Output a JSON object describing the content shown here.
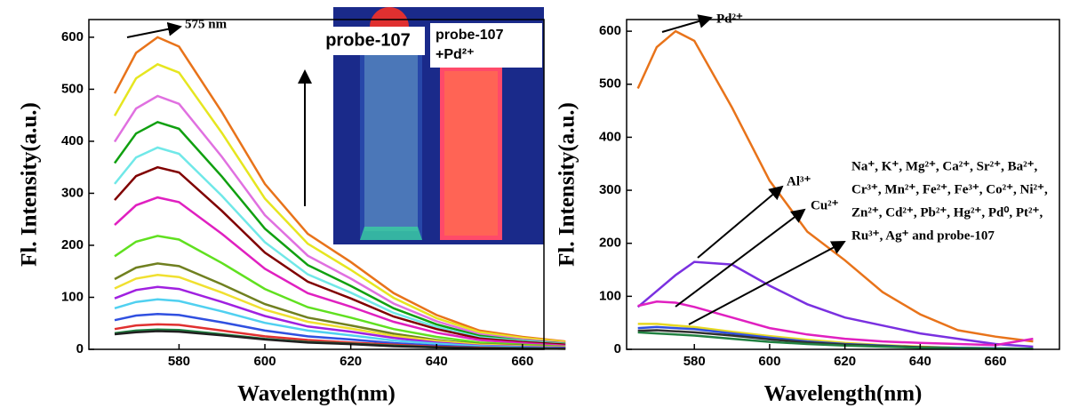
{
  "chart_data": [
    {
      "type": "line",
      "x_label": "Wavelength(nm)",
      "y_label": "Fl. Intensity(a.u.)",
      "annotation": "575 nm",
      "inset_labels": [
        "probe-107",
        "probe-107",
        "+Pd²⁺"
      ],
      "x": [
        565,
        570,
        575,
        580,
        590,
        600,
        610,
        620,
        630,
        640,
        650,
        660,
        670
      ],
      "xlim": [
        559,
        665
      ],
      "xticks": [
        580,
        600,
        620,
        640,
        660
      ],
      "ylim": [
        0,
        634
      ],
      "yticks": [
        0,
        100,
        200,
        300,
        400,
        500,
        600
      ],
      "series": [
        {
          "color": "#e8731a",
          "values": [
            492,
            570,
            600,
            582,
            456,
            318,
            222,
            168,
            108,
            66,
            36,
            24,
            15
          ]
        },
        {
          "color": "#e6e620",
          "values": [
            449,
            521,
            548,
            532,
            416,
            290,
            203,
            153,
            99,
            60,
            33,
            22,
            14
          ]
        },
        {
          "color": "#e070e0",
          "values": [
            399,
            463,
            487,
            472,
            370,
            258,
            180,
            136,
            88,
            54,
            29,
            19,
            12
          ]
        },
        {
          "color": "#10a010",
          "values": [
            358,
            415,
            437,
            424,
            332,
            232,
            162,
            122,
            79,
            48,
            26,
            17,
            11
          ]
        },
        {
          "color": "#70e8e8",
          "values": [
            318,
            369,
            388,
            376,
            295,
            206,
            144,
            109,
            70,
            43,
            23,
            16,
            10
          ]
        },
        {
          "color": "#800000",
          "values": [
            287,
            333,
            350,
            340,
            266,
            186,
            130,
            98,
            63,
            39,
            21,
            14,
            9
          ]
        },
        {
          "color": "#e020c0",
          "values": [
            239,
            277,
            292,
            283,
            222,
            155,
            108,
            82,
            53,
            32,
            18,
            12,
            7
          ]
        },
        {
          "color": "#60e020",
          "values": [
            179,
            207,
            218,
            211,
            166,
            116,
            81,
            61,
            39,
            24,
            13,
            9,
            5
          ]
        },
        {
          "color": "#708020",
          "values": [
            135,
            157,
            165,
            160,
            125,
            87,
            61,
            46,
            30,
            18,
            10,
            7,
            4
          ]
        },
        {
          "color": "#f0e030",
          "values": [
            117,
            136,
            143,
            139,
            109,
            76,
            53,
            40,
            26,
            16,
            9,
            6,
            4
          ]
        },
        {
          "color": "#a020e0",
          "values": [
            98,
            114,
            120,
            116,
            91,
            64,
            44,
            34,
            22,
            13,
            7,
            5,
            3
          ]
        },
        {
          "color": "#50d0f0",
          "values": [
            79,
            91,
            96,
            93,
            73,
            51,
            36,
            27,
            17,
            11,
            6,
            4,
            2
          ]
        },
        {
          "color": "#3050e0",
          "values": [
            56,
            65,
            68,
            66,
            52,
            36,
            25,
            19,
            12,
            7,
            4,
            3,
            2
          ]
        },
        {
          "color": "#e03030",
          "values": [
            39,
            46,
            48,
            47,
            36,
            25,
            18,
            13,
            9,
            5,
            3,
            2,
            1
          ]
        },
        {
          "color": "#208040",
          "values": [
            31,
            36,
            38,
            37,
            29,
            20,
            14,
            11,
            7,
            4,
            2,
            2,
            1
          ]
        },
        {
          "color": "#202020",
          "values": [
            29,
            33,
            35,
            34,
            27,
            19,
            13,
            10,
            6,
            4,
            2,
            1,
            1
          ]
        }
      ]
    },
    {
      "type": "line",
      "x_label": "Wavelength(nm)",
      "y_label": "Fl. Intensity(a.u.)",
      "annotations": [
        "Pd²⁺",
        "Al³⁺",
        "Cu²⁺"
      ],
      "note_lines": [
        "Na⁺, K⁺, Mg²⁺, Ca²⁺, Sr²⁺, Ba²⁺,",
        "Cr³⁺, Mn²⁺, Fe²⁺, Fe³⁺, Co²⁺, Ni²⁺,",
        "Zn²⁺, Cd²⁺, Pb²⁺, Hg²⁺, Pd⁰, Pt²⁺,",
        "Ru³⁺, Ag⁺ and probe-107"
      ],
      "x": [
        565,
        570,
        575,
        580,
        590,
        600,
        610,
        620,
        630,
        640,
        650,
        660,
        670
      ],
      "xlim": [
        562,
        677
      ],
      "xticks": [
        580,
        600,
        620,
        640,
        660
      ],
      "ylim": [
        0,
        622
      ],
      "yticks": [
        0,
        100,
        200,
        300,
        400,
        500,
        600
      ],
      "series": [
        {
          "color": "#e8731a",
          "values": [
            492,
            570,
            600,
            582,
            456,
            318,
            222,
            168,
            108,
            66,
            36,
            24,
            15
          ]
        },
        {
          "color": "#7a30e0",
          "values": [
            80,
            110,
            140,
            165,
            160,
            120,
            85,
            60,
            45,
            30,
            20,
            10,
            5
          ]
        },
        {
          "color": "#e020c0",
          "values": [
            82,
            90,
            88,
            80,
            60,
            40,
            28,
            20,
            15,
            12,
            10,
            8,
            20
          ]
        },
        {
          "color": "#e6d820",
          "values": [
            48,
            48,
            45,
            42,
            33,
            25,
            18,
            12,
            8,
            5,
            3,
            2,
            1
          ]
        },
        {
          "color": "#3050e0",
          "values": [
            40,
            42,
            40,
            38,
            30,
            22,
            15,
            10,
            7,
            4,
            3,
            2,
            1
          ]
        },
        {
          "color": "#303030",
          "values": [
            35,
            36,
            34,
            32,
            26,
            19,
            13,
            9,
            6,
            4,
            2,
            1,
            1
          ]
        },
        {
          "color": "#208040",
          "values": [
            32,
            30,
            28,
            26,
            20,
            14,
            10,
            7,
            5,
            3,
            2,
            1,
            1
          ]
        }
      ]
    }
  ]
}
